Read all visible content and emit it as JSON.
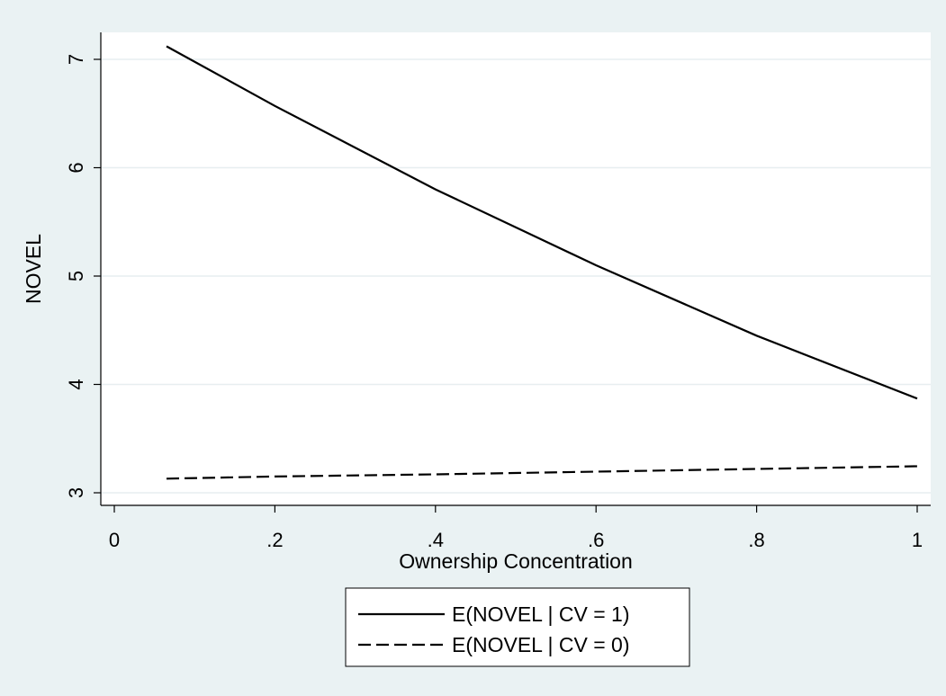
{
  "chart_data": {
    "type": "line",
    "xlabel": "Ownership Concentration",
    "ylabel": "NOVEL",
    "xlim": [
      0,
      1
    ],
    "ylim": [
      2.85,
      7.3
    ],
    "x_ticks": [
      0,
      0.2,
      0.4,
      0.6,
      0.8,
      1
    ],
    "x_tick_labels": [
      "0",
      ".2",
      ".4",
      ".6",
      ".8",
      "1"
    ],
    "y_ticks": [
      3,
      4,
      5,
      6,
      7
    ],
    "y_tick_labels": [
      "3",
      "4",
      "5",
      "6",
      "7"
    ],
    "grid": true,
    "legend_position": "bottom",
    "series": [
      {
        "name": "E(NOVEL | CV = 1)",
        "style": "solid",
        "color": "#000000",
        "x": [
          0.065,
          0.2,
          0.4,
          0.6,
          0.8,
          1.0
        ],
        "y": [
          7.12,
          6.57,
          5.8,
          5.1,
          4.45,
          3.87
        ]
      },
      {
        "name": "E(NOVEL | CV = 0)",
        "style": "dashed",
        "color": "#000000",
        "x": [
          0.065,
          0.2,
          0.4,
          0.6,
          0.8,
          1.0
        ],
        "y": [
          3.13,
          3.15,
          3.17,
          3.195,
          3.22,
          3.245
        ]
      }
    ]
  }
}
